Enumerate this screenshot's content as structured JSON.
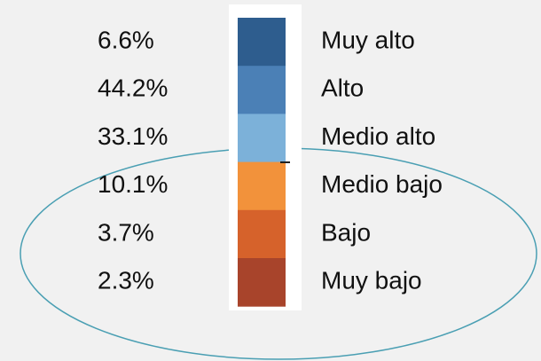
{
  "legend": {
    "items": [
      {
        "value": "6.6%",
        "label": "Muy alto",
        "color": "#2e5d8e"
      },
      {
        "value": "44.2%",
        "label": "Alto",
        "color": "#4b80b6"
      },
      {
        "value": "33.1%",
        "label": "Medio alto",
        "color": "#7cb1d9"
      },
      {
        "value": "10.1%",
        "label": "Medio bajo",
        "color": "#f2923b"
      },
      {
        "value": "3.7%",
        "label": "Bajo",
        "color": "#d6622b"
      },
      {
        "value": "2.3%",
        "label": "Muy bajo",
        "color": "#a8442b"
      }
    ]
  }
}
